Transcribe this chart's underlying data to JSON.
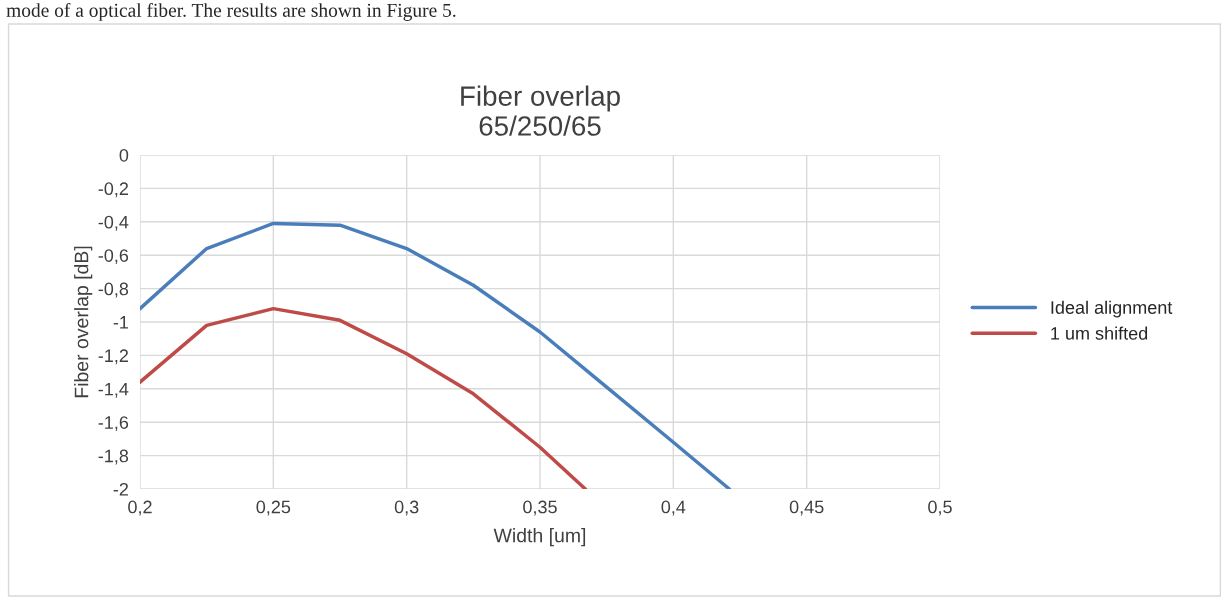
{
  "chart_data": {
    "type": "line",
    "title": "Fiber overlap\n65/250/65",
    "xlabel": "Width [um]",
    "ylabel": "Fiber overlap [dB]",
    "annotations": [
      "mode of a optical fiber. The results are shown in Figure 5."
    ],
    "series": [
      {
        "name": "Ideal alignment",
        "color": "#4a7ebb",
        "x": [
          0.2,
          0.225,
          0.25,
          0.275,
          0.3,
          0.325,
          0.35,
          0.375,
          0.4,
          0.421
        ],
        "values": [
          -0.92,
          -0.56,
          -0.41,
          -0.42,
          -0.56,
          -0.78,
          -1.06,
          -1.39,
          -1.72,
          -2
        ]
      },
      {
        "name": "1 um shifted",
        "color": "#be4b48",
        "x": [
          0.2,
          0.225,
          0.25,
          0.275,
          0.3,
          0.325,
          0.35,
          0.367
        ],
        "values": [
          -1.36,
          -1.02,
          -0.92,
          -0.99,
          -1.19,
          -1.43,
          -1.75,
          -2
        ]
      }
    ],
    "xlim": [
      0.2,
      0.5
    ],
    "ylim": [
      -2,
      0
    ],
    "xticks": [
      {
        "value": 0.2,
        "label": "0,2"
      },
      {
        "value": 0.25,
        "label": "0,25"
      },
      {
        "value": 0.3,
        "label": "0,3"
      },
      {
        "value": 0.35,
        "label": "0,35"
      },
      {
        "value": 0.4,
        "label": "0,4"
      },
      {
        "value": 0.45,
        "label": "0,45"
      },
      {
        "value": 0.5,
        "label": "0,5"
      }
    ],
    "yticks": [
      0,
      {
        "value": -0.2,
        "label": "-0,2"
      },
      {
        "value": -0.4,
        "label": "-0,4"
      },
      {
        "value": -0.6,
        "label": "-0,6"
      },
      {
        "value": -0.8,
        "label": "-0,8"
      },
      -1,
      {
        "value": -1.2,
        "label": "-1,2"
      },
      {
        "value": -1.4,
        "label": "-1,4"
      },
      {
        "value": -1.6,
        "label": "-1,6"
      },
      {
        "value": -1.8,
        "label": "-1,8"
      },
      -2
    ],
    "grid": true,
    "legend": "right",
    "marker": "none",
    "line_style": "solid"
  }
}
